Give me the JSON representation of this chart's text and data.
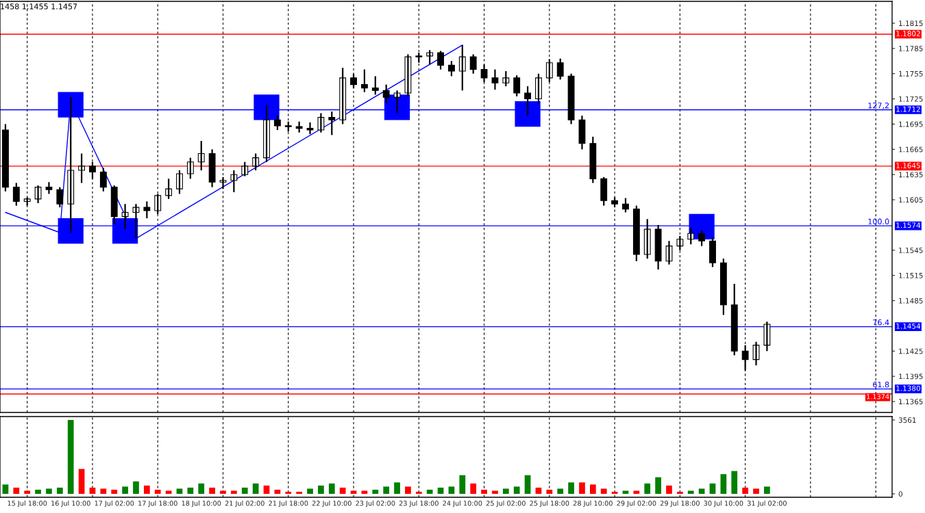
{
  "chart_data": [
    {
      "type": "candlestick",
      "categories": [
        null,
        null,
        null,
        null,
        null,
        null,
        null,
        null,
        null,
        null,
        null,
        null,
        null,
        null,
        null,
        null,
        null,
        null,
        null,
        null,
        null,
        null,
        null,
        null,
        null,
        null,
        null,
        null,
        null,
        null,
        null,
        null,
        null,
        null,
        null,
        null,
        null,
        null,
        null,
        null,
        null,
        null,
        null,
        null,
        null,
        null,
        null,
        null,
        null,
        null,
        null,
        null,
        null,
        null,
        null,
        null,
        null,
        null,
        null,
        null,
        null,
        null,
        null,
        null,
        null,
        null,
        null,
        null,
        null,
        null,
        null,
        null,
        null,
        null,
        null,
        null,
        null,
        null,
        null,
        null,
        null,
        null
      ],
      "ohlc": [
        [
          1.1688,
          1.1695,
          1.1615,
          1.162
        ],
        [
          1.162,
          1.1625,
          1.1598,
          1.1603
        ],
        [
          1.1603,
          1.1608,
          1.1598,
          1.1606
        ],
        [
          1.1606,
          1.1622,
          1.1601,
          1.162
        ],
        [
          1.162,
          1.1626,
          1.1612,
          1.1617
        ],
        [
          1.1617,
          1.162,
          1.1596,
          1.16
        ],
        [
          1.16,
          1.1727,
          1.1566,
          1.164
        ],
        [
          1.164,
          1.166,
          1.1625,
          1.1645
        ],
        [
          1.1645,
          1.165,
          1.163,
          1.1638
        ],
        [
          1.1638,
          1.1643,
          1.1615,
          1.162
        ],
        [
          1.162,
          1.1622,
          1.1576,
          1.1585
        ],
        [
          1.1585,
          1.16,
          1.157,
          1.159
        ],
        [
          1.159,
          1.16,
          1.1559,
          1.1596
        ],
        [
          1.1596,
          1.1603,
          1.1583,
          1.1592
        ],
        [
          1.1592,
          1.1612,
          1.1588,
          1.161
        ],
        [
          1.161,
          1.163,
          1.1606,
          1.1618
        ],
        [
          1.1618,
          1.164,
          1.1612,
          1.1636
        ],
        [
          1.1636,
          1.1655,
          1.163,
          1.165
        ],
        [
          1.165,
          1.1675,
          1.164,
          1.166
        ],
        [
          1.166,
          1.1665,
          1.162,
          1.1626
        ],
        [
          1.1626,
          1.1632,
          1.1618,
          1.1628
        ],
        [
          1.1628,
          1.164,
          1.1614,
          1.1635
        ],
        [
          1.1635,
          1.165,
          1.1633,
          1.1645
        ],
        [
          1.1645,
          1.166,
          1.164,
          1.1655
        ],
        [
          1.1655,
          1.1718,
          1.165,
          1.17
        ],
        [
          1.17,
          1.1705,
          1.1688,
          1.1693
        ],
        [
          1.1693,
          1.1698,
          1.1686,
          1.1692
        ],
        [
          1.1692,
          1.1698,
          1.1685,
          1.169
        ],
        [
          1.169,
          1.1697,
          1.1683,
          1.1688
        ],
        [
          1.1688,
          1.1708,
          1.1685,
          1.1703
        ],
        [
          1.1703,
          1.171,
          1.1682,
          1.17
        ],
        [
          1.17,
          1.1762,
          1.1695,
          1.175
        ],
        [
          1.175,
          1.1755,
          1.1738,
          1.1742
        ],
        [
          1.1742,
          1.176,
          1.1733,
          1.1738
        ],
        [
          1.1738,
          1.1752,
          1.173,
          1.1735
        ],
        [
          1.1735,
          1.1742,
          1.172,
          1.1727
        ],
        [
          1.1727,
          1.1735,
          1.1708,
          1.1732
        ],
        [
          1.1732,
          1.1778,
          1.1728,
          1.1775
        ],
        [
          1.1775,
          1.178,
          1.1768,
          1.1776
        ],
        [
          1.1776,
          1.1783,
          1.1766,
          1.178
        ],
        [
          1.178,
          1.1782,
          1.176,
          1.1765
        ],
        [
          1.1765,
          1.177,
          1.1752,
          1.1758
        ],
        [
          1.1758,
          1.1789,
          1.1735,
          1.1775
        ],
        [
          1.1775,
          1.1778,
          1.1755,
          1.176
        ],
        [
          1.176,
          1.1766,
          1.1745,
          1.175
        ],
        [
          1.175,
          1.176,
          1.1736,
          1.1744
        ],
        [
          1.1744,
          1.1758,
          1.174,
          1.175
        ],
        [
          1.175,
          1.1753,
          1.1728,
          1.1732
        ],
        [
          1.1732,
          1.174,
          1.1705,
          1.1725
        ],
        [
          1.1725,
          1.1755,
          1.172,
          1.175
        ],
        [
          1.175,
          1.1772,
          1.1745,
          1.1768
        ],
        [
          1.1768,
          1.1773,
          1.1748,
          1.1752
        ],
        [
          1.1752,
          1.1755,
          1.1695,
          1.17
        ],
        [
          1.17,
          1.1705,
          1.1665,
          1.1672
        ],
        [
          1.1672,
          1.168,
          1.1625,
          1.163
        ],
        [
          1.163,
          1.1632,
          1.1598,
          1.1604
        ],
        [
          1.1604,
          1.1608,
          1.1596,
          1.16
        ],
        [
          1.16,
          1.1607,
          1.159,
          1.1594
        ],
        [
          1.1594,
          1.1598,
          1.1532,
          1.154
        ],
        [
          1.154,
          1.1582,
          1.1535,
          1.157
        ],
        [
          1.157,
          1.1575,
          1.1522,
          1.1532
        ],
        [
          1.1532,
          1.1556,
          1.1528,
          1.155
        ],
        [
          1.155,
          1.1562,
          1.1545,
          1.1558
        ],
        [
          1.1558,
          1.1572,
          1.1552,
          1.1565
        ],
        [
          1.1565,
          1.1568,
          1.155,
          1.1556
        ],
        [
          1.1556,
          1.156,
          1.1525,
          1.153
        ],
        [
          1.153,
          1.1535,
          1.1468,
          1.148
        ],
        [
          1.148,
          1.1505,
          1.142,
          1.1425
        ],
        [
          1.1425,
          1.1432,
          1.1402,
          1.1415
        ],
        [
          1.1415,
          1.1436,
          1.1408,
          1.1432
        ],
        [
          1.1432,
          1.146,
          1.1425,
          1.1457
        ],
        null,
        null,
        null,
        null,
        null,
        null,
        null,
        null,
        null,
        null,
        null
      ],
      "series": [
        {
          "type": "line",
          "color": "#0000ff",
          "values": [
            1.159,
            null,
            null,
            null,
            null,
            1.1566,
            1.1723,
            null,
            null,
            null,
            null,
            null,
            1.1559,
            null,
            null,
            null,
            null,
            null,
            null,
            null,
            null,
            null,
            null,
            null,
            null,
            null,
            null,
            null,
            null,
            null,
            null,
            null,
            null,
            null,
            null,
            null,
            null,
            null,
            null,
            null,
            null,
            null,
            1.1789,
            null,
            null,
            null,
            null,
            null,
            null,
            null,
            null,
            null,
            null,
            null,
            null,
            null,
            null,
            null,
            null,
            null,
            null,
            null,
            null,
            null,
            null,
            null,
            null,
            null,
            null,
            null,
            null,
            null,
            null,
            null,
            null,
            null,
            null,
            null,
            null,
            null,
            null,
            null
          ]
        },
        {
          "type": "scatter",
          "marker": "square",
          "color": "#0000ff",
          "values": [
            null,
            null,
            null,
            null,
            null,
            null,
            1.1718,
            null,
            null,
            null,
            null,
            null,
            null,
            null,
            null,
            null,
            null,
            null,
            null,
            null,
            null,
            null,
            null,
            null,
            1.1715,
            null,
            null,
            null,
            null,
            null,
            null,
            null,
            null,
            null,
            null,
            null,
            1.1715,
            null,
            null,
            null,
            null,
            null,
            null,
            null,
            null,
            null,
            null,
            null,
            1.1707,
            null,
            null,
            null,
            null,
            null,
            null,
            null,
            null,
            null,
            null,
            null,
            null,
            null,
            null,
            null,
            null,
            null,
            null,
            null,
            null,
            null,
            null,
            null,
            null,
            null,
            null,
            null,
            null,
            null,
            null,
            null,
            null,
            null
          ]
        },
        {
          "type": "scatter",
          "marker": "square",
          "color": "#0000ff",
          "values": [
            null,
            null,
            null,
            null,
            null,
            null,
            1.1568,
            null,
            null,
            null,
            null,
            1.1568,
            null,
            null,
            null,
            null,
            null,
            null,
            null,
            null,
            null,
            null,
            null,
            null,
            null,
            null,
            null,
            null,
            null,
            null,
            null,
            null,
            null,
            null,
            null,
            null,
            null,
            null,
            null,
            null,
            null,
            null,
            null,
            null,
            null,
            null,
            null,
            null,
            null,
            null,
            null,
            null,
            null,
            null,
            null,
            null,
            null,
            null,
            null,
            null,
            null,
            null,
            null,
            null,
            1.1573,
            null,
            null,
            null,
            null,
            null,
            null,
            null,
            null,
            null,
            null,
            null,
            null,
            null,
            null,
            null,
            null,
            null
          ]
        }
      ],
      "ylim": [
        1.1352,
        1.1841
      ],
      "yticks": [
        1.1365,
        1.1395,
        1.1425,
        1.1485,
        1.1515,
        1.1545,
        1.1605,
        1.1635,
        1.1665,
        1.1695,
        1.1725,
        1.1755,
        1.1785,
        1.1815
      ],
      "grid": "x",
      "ref_lines": [
        {
          "axis": "y",
          "value": 1.1802,
          "label": "1.1802",
          "color": "#ff0000"
        },
        {
          "axis": "y",
          "value": 1.1712,
          "label": "1.1712",
          "color": "#0000ff"
        },
        {
          "axis": "y",
          "value": 1.1645,
          "label": "1.1645",
          "color": "#ff0000"
        },
        {
          "axis": "y",
          "value": 1.1574,
          "label": "1.1574",
          "color": "#0000ff"
        },
        {
          "axis": "y",
          "value": 1.1454,
          "label": "1.1454",
          "color": "#0000ff"
        },
        {
          "axis": "y",
          "value": 1.138,
          "label": "1.1380",
          "color": "#0000ff"
        },
        {
          "axis": "y",
          "value": 1.1374,
          "label": "1.1374",
          "color": "#ff0000"
        }
      ],
      "annotations": [
        "1458 1.1455 1.1457",
        {
          "text": "127,2",
          "y": 1.1712
        },
        {
          "text": "100.0",
          "y": 1.1574
        },
        {
          "text": "76.4",
          "y": 1.1454
        },
        {
          "text": "61.8",
          "y": 1.138
        }
      ]
    },
    {
      "type": "bar",
      "categories": [
        null,
        null,
        "15 Jul 18:00",
        null,
        null,
        null,
        "16 Jul 10:00",
        null,
        null,
        null,
        "17 Jul 02:00",
        null,
        null,
        null,
        "17 Jul 18:00",
        null,
        null,
        null,
        "18 Jul 10:00",
        null,
        null,
        null,
        "21 Jul 02:00",
        null,
        null,
        null,
        "21 Jul 18:00",
        null,
        null,
        null,
        "22 Jul 10:00",
        null,
        null,
        null,
        "23 Jul 02:00",
        null,
        null,
        null,
        "23 Jul 18:00",
        null,
        null,
        null,
        "24 Jul 10:00",
        null,
        null,
        null,
        "25 Jul 02:00",
        null,
        null,
        null,
        "25 Jul 18:00",
        null,
        null,
        null,
        "28 Jul 10:00",
        null,
        null,
        null,
        "29 Jul 02:00",
        null,
        null,
        null,
        "29 Jul 18:00",
        null,
        null,
        null,
        "30 Jul 10:00",
        null,
        null,
        null,
        "31 Jul 02:00",
        null,
        null,
        null,
        null,
        null,
        null,
        null,
        null,
        null,
        null,
        null
      ],
      "values": [
        450,
        300,
        150,
        200,
        250,
        300,
        3561,
        1200,
        300,
        250,
        200,
        350,
        600,
        400,
        200,
        150,
        250,
        300,
        500,
        300,
        150,
        150,
        300,
        500,
        400,
        200,
        100,
        100,
        250,
        400,
        500,
        300,
        150,
        150,
        200,
        350,
        550,
        350,
        100,
        200,
        300,
        350,
        900,
        500,
        200,
        150,
        250,
        350,
        900,
        300,
        200,
        250,
        550,
        550,
        450,
        250,
        100,
        150,
        150,
        500,
        800,
        400,
        100,
        150,
        250,
        500,
        950,
        1100,
        300,
        250,
        350,
        null,
        null,
        null,
        null,
        null,
        null,
        null,
        null,
        null,
        null,
        null
      ],
      "colors": [
        "#008000",
        "#ff0000",
        "#ff0000",
        "#008000",
        "#008000",
        "#008000",
        "#008000",
        "#ff0000",
        "#ff0000",
        "#ff0000",
        "#ff0000",
        "#008000",
        "#008000",
        "#ff0000",
        "#ff0000",
        "#ff0000",
        "#008000",
        "#008000",
        "#008000",
        "#ff0000",
        "#ff0000",
        "#ff0000",
        "#008000",
        "#008000",
        "#ff0000",
        "#ff0000",
        "#ff0000",
        "#ff0000",
        "#008000",
        "#008000",
        "#008000",
        "#ff0000",
        "#ff0000",
        "#ff0000",
        "#008000",
        "#008000",
        "#008000",
        "#ff0000",
        "#ff0000",
        "#008000",
        "#008000",
        "#008000",
        "#008000",
        "#ff0000",
        "#ff0000",
        "#ff0000",
        "#008000",
        "#008000",
        "#008000",
        "#ff0000",
        "#ff0000",
        "#008000",
        "#008000",
        "#ff0000",
        "#ff0000",
        "#ff0000",
        "#ff0000",
        "#008000",
        "#ff0000",
        "#008000",
        "#008000",
        "#ff0000",
        "#ff0000",
        "#008000",
        "#008000",
        "#008000",
        "#008000",
        "#008000",
        "#ff0000",
        "#ff0000",
        "#008000",
        null,
        null,
        null,
        null,
        null,
        null,
        null,
        null,
        null,
        null,
        null
      ],
      "ylim": [
        -165,
        3726
      ],
      "yticks": [
        0,
        3561
      ],
      "grid": "x"
    }
  ]
}
